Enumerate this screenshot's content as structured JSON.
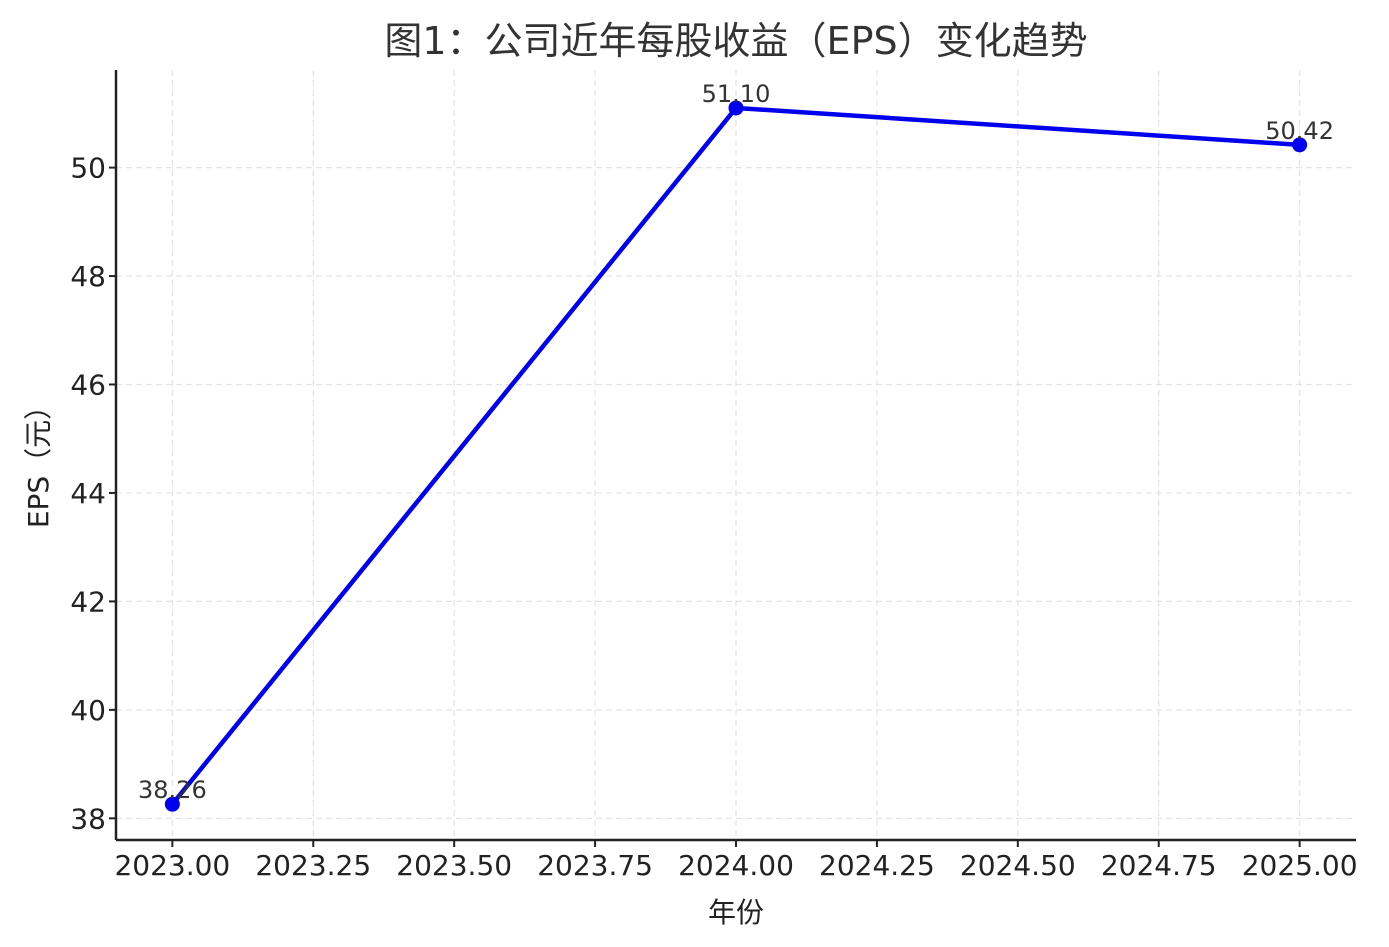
{
  "chart_data": {
    "type": "line",
    "title": "图1：公司近年每股收益（EPS）变化趋势",
    "xlabel": "年份",
    "ylabel": "EPS（元）",
    "x": [
      2023.0,
      2024.0,
      2025.0
    ],
    "series": [
      {
        "values": [
          38.26,
          51.1,
          50.42
        ],
        "color": "#0000ee",
        "marker": "circle"
      }
    ],
    "data_labels": [
      "38.26",
      "51.10",
      "50.42"
    ],
    "xlim": [
      2022.9,
      2025.1
    ],
    "ylim": [
      37.6,
      51.8
    ],
    "xticks": [
      2023.0,
      2023.25,
      2023.5,
      2023.75,
      2024.0,
      2024.25,
      2024.5,
      2024.75,
      2025.0
    ],
    "xtick_labels": [
      "2023.00",
      "2023.25",
      "2023.50",
      "2023.75",
      "2024.00",
      "2024.25",
      "2024.50",
      "2024.75",
      "2025.00"
    ],
    "yticks": [
      38,
      40,
      42,
      44,
      46,
      48,
      50
    ],
    "ytick_labels": [
      "38",
      "40",
      "42",
      "44",
      "46",
      "48",
      "50"
    ],
    "grid": true,
    "legend": "none"
  }
}
